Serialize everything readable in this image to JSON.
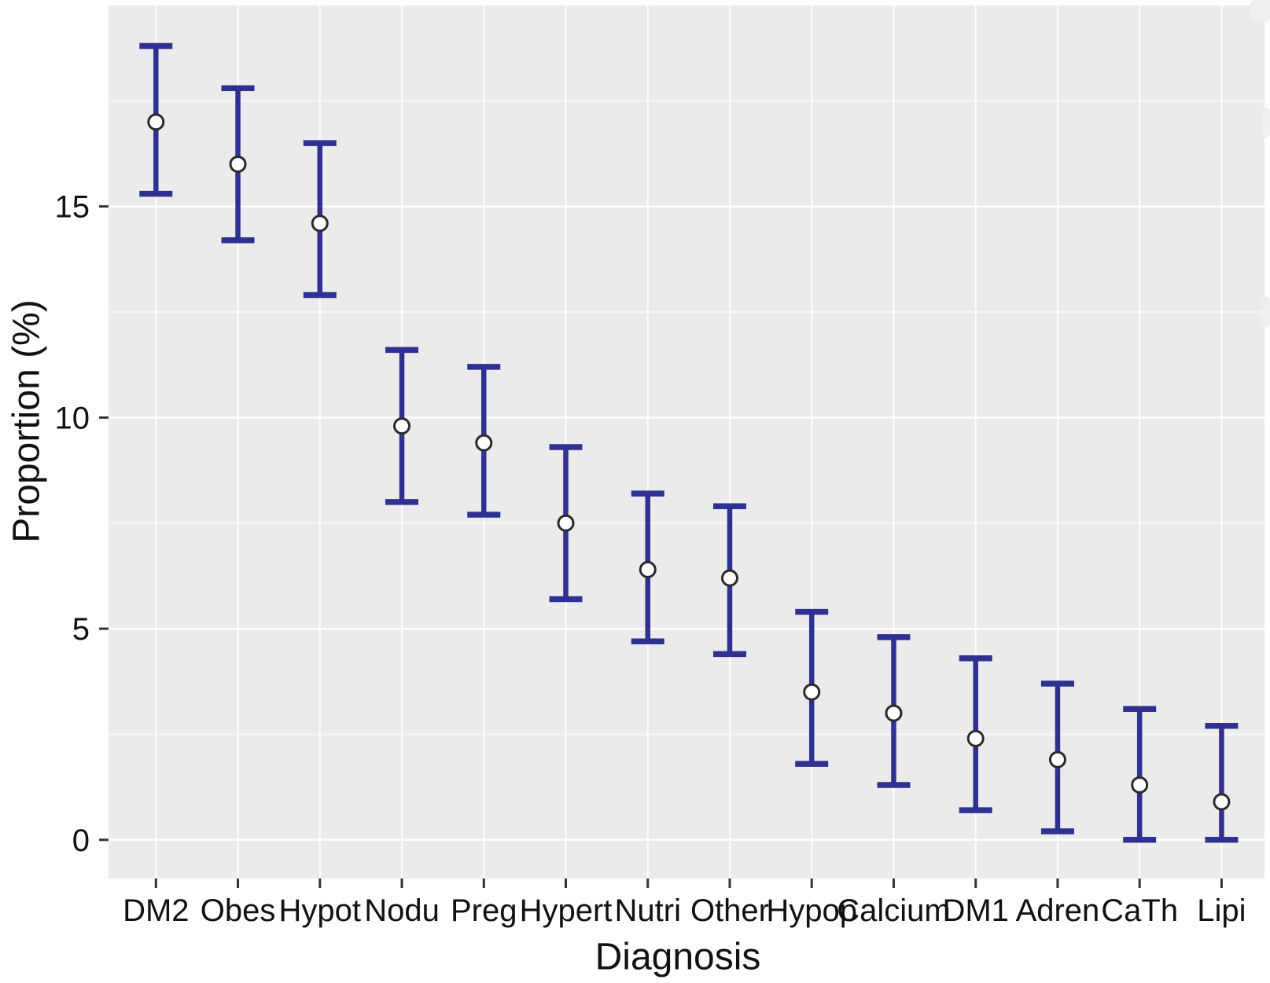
{
  "chart_data": {
    "type": "scatter",
    "subtype": "point-estimate-with-error-bars",
    "title": "",
    "xlabel": "Diagnosis",
    "ylabel": "Proportion (%)",
    "categories": [
      "DM2",
      "Obes",
      "Hypot",
      "Nodu",
      "Preg",
      "Hypert",
      "Nutri",
      "Other",
      "Hypop",
      "Calcium",
      "DM1",
      "Adren",
      "CaTh",
      "Lipi"
    ],
    "series": [
      {
        "name": "Proportion",
        "values": [
          17.0,
          16.0,
          14.6,
          9.8,
          9.4,
          7.5,
          6.4,
          6.2,
          3.5,
          3.0,
          2.4,
          1.9,
          1.3,
          0.9
        ],
        "ci_lower": [
          15.3,
          14.2,
          12.9,
          8.0,
          7.7,
          5.7,
          4.7,
          4.4,
          1.8,
          1.3,
          0.7,
          0.2,
          0.0,
          0.0
        ],
        "ci_upper": [
          18.8,
          17.8,
          16.5,
          11.6,
          11.2,
          9.3,
          8.2,
          7.9,
          5.4,
          4.8,
          4.3,
          3.7,
          3.1,
          2.7
        ]
      }
    ],
    "y_axis": {
      "ticks": [
        0,
        5,
        10,
        15
      ],
      "minor_ticks": [
        2.5,
        7.5,
        12.5,
        17.5
      ],
      "range": [
        -0.9,
        19.8
      ]
    },
    "x_axis": {
      "kind": "categorical"
    },
    "legend": "none",
    "grid": {
      "show": true,
      "panel_background": "#ebebeb",
      "major_color": "#ffffff",
      "minor_color": "#f7f7f7"
    },
    "colors": {
      "error_bar": "#2e3092",
      "point_fill": "#ffffff",
      "point_outline": "#2a2a2a",
      "axis_text": "#111111",
      "tick_mark": "#333333"
    }
  }
}
